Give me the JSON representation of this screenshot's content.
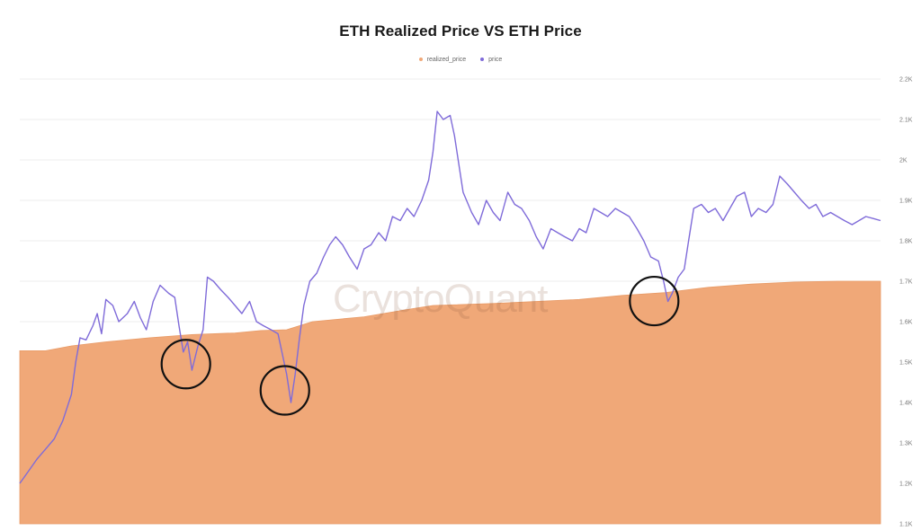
{
  "chart_data": {
    "type": "area",
    "title": "ETH Realized Price VS ETH Price",
    "watermark": "CryptoQuant",
    "legend_position": "top-center",
    "grid": "horizontal",
    "y_axis_position": "right",
    "ylim": [
      1100,
      2200
    ],
    "y_ticks": [
      {
        "value": 1100,
        "label": "1.1K"
      },
      {
        "value": 1200,
        "label": "1.2K"
      },
      {
        "value": 1300,
        "label": "1.3K"
      },
      {
        "value": 1400,
        "label": "1.4K"
      },
      {
        "value": 1500,
        "label": "1.5K"
      },
      {
        "value": 1600,
        "label": "1.6K"
      },
      {
        "value": 1700,
        "label": "1.7K"
      },
      {
        "value": 1800,
        "label": "1.8K"
      },
      {
        "value": 1900,
        "label": "1.9K"
      },
      {
        "value": 2000,
        "label": "2K"
      },
      {
        "value": 2100,
        "label": "2.1K"
      },
      {
        "value": 2200,
        "label": "2.2K"
      }
    ],
    "x_range": [
      0,
      100
    ],
    "series": [
      {
        "name": "realized_price",
        "kind": "area",
        "color": "#f0a878",
        "points": [
          [
            0,
            1528
          ],
          [
            3,
            1528
          ],
          [
            6,
            1540
          ],
          [
            10,
            1550
          ],
          [
            15,
            1560
          ],
          [
            20,
            1568
          ],
          [
            25,
            1572
          ],
          [
            28,
            1578
          ],
          [
            31,
            1580
          ],
          [
            34,
            1600
          ],
          [
            40,
            1612
          ],
          [
            45,
            1630
          ],
          [
            48,
            1640
          ],
          [
            55,
            1645
          ],
          [
            60,
            1650
          ],
          [
            65,
            1655
          ],
          [
            70,
            1665
          ],
          [
            75,
            1672
          ],
          [
            80,
            1685
          ],
          [
            85,
            1693
          ],
          [
            90,
            1698
          ],
          [
            95,
            1700
          ],
          [
            100,
            1700
          ]
        ]
      },
      {
        "name": "price",
        "kind": "line",
        "color": "#7f6bd9",
        "points": [
          [
            0,
            1200
          ],
          [
            1,
            1230
          ],
          [
            2,
            1260
          ],
          [
            3,
            1285
          ],
          [
            4,
            1310
          ],
          [
            5,
            1355
          ],
          [
            6,
            1420
          ],
          [
            6.5,
            1500
          ],
          [
            7,
            1560
          ],
          [
            7.7,
            1555
          ],
          [
            8.5,
            1590
          ],
          [
            9,
            1620
          ],
          [
            9.5,
            1570
          ],
          [
            10,
            1655
          ],
          [
            10.8,
            1640
          ],
          [
            11.5,
            1600
          ],
          [
            12.5,
            1620
          ],
          [
            13.3,
            1650
          ],
          [
            14,
            1610
          ],
          [
            14.7,
            1580
          ],
          [
            15.5,
            1650
          ],
          [
            16.3,
            1690
          ],
          [
            17.3,
            1670
          ],
          [
            18,
            1660
          ],
          [
            18.5,
            1590
          ],
          [
            19,
            1525
          ],
          [
            19.5,
            1550
          ],
          [
            20,
            1480
          ],
          [
            20.7,
            1540
          ],
          [
            21.3,
            1580
          ],
          [
            21.8,
            1710
          ],
          [
            22.5,
            1700
          ],
          [
            23.3,
            1680
          ],
          [
            24.2,
            1660
          ],
          [
            25,
            1640
          ],
          [
            25.8,
            1620
          ],
          [
            26.7,
            1650
          ],
          [
            27.5,
            1600
          ],
          [
            28.3,
            1590
          ],
          [
            29.2,
            1580
          ],
          [
            30,
            1570
          ],
          [
            30.5,
            1520
          ],
          [
            31,
            1470
          ],
          [
            31.5,
            1400
          ],
          [
            32,
            1470
          ],
          [
            32.5,
            1560
          ],
          [
            33,
            1640
          ],
          [
            33.7,
            1700
          ],
          [
            34.5,
            1720
          ],
          [
            35.3,
            1760
          ],
          [
            36,
            1790
          ],
          [
            36.7,
            1810
          ],
          [
            37.5,
            1790
          ],
          [
            38.3,
            1760
          ],
          [
            39.2,
            1730
          ],
          [
            40,
            1780
          ],
          [
            40.8,
            1790
          ],
          [
            41.7,
            1820
          ],
          [
            42.5,
            1800
          ],
          [
            43.3,
            1860
          ],
          [
            44.2,
            1850
          ],
          [
            45,
            1880
          ],
          [
            45.8,
            1860
          ],
          [
            46.7,
            1900
          ],
          [
            47.5,
            1950
          ],
          [
            48,
            2020
          ],
          [
            48.5,
            2120
          ],
          [
            49.2,
            2100
          ],
          [
            50,
            2110
          ],
          [
            50.5,
            2060
          ],
          [
            51,
            1990
          ],
          [
            51.5,
            1920
          ],
          [
            52.5,
            1870
          ],
          [
            53.3,
            1840
          ],
          [
            54.2,
            1900
          ],
          [
            55,
            1870
          ],
          [
            55.8,
            1850
          ],
          [
            56.7,
            1920
          ],
          [
            57.5,
            1890
          ],
          [
            58.3,
            1880
          ],
          [
            59.2,
            1850
          ],
          [
            60,
            1810
          ],
          [
            60.8,
            1780
          ],
          [
            61.7,
            1830
          ],
          [
            62.5,
            1820
          ],
          [
            63.3,
            1810
          ],
          [
            64.2,
            1800
          ],
          [
            65,
            1830
          ],
          [
            65.8,
            1820
          ],
          [
            66.7,
            1880
          ],
          [
            67.5,
            1870
          ],
          [
            68.3,
            1860
          ],
          [
            69.2,
            1880
          ],
          [
            70,
            1870
          ],
          [
            70.8,
            1860
          ],
          [
            71.7,
            1830
          ],
          [
            72.5,
            1800
          ],
          [
            73.3,
            1760
          ],
          [
            74.2,
            1750
          ],
          [
            74.8,
            1700
          ],
          [
            75.3,
            1650
          ],
          [
            75.8,
            1670
          ],
          [
            76.5,
            1710
          ],
          [
            77.2,
            1730
          ],
          [
            77.7,
            1800
          ],
          [
            78.3,
            1880
          ],
          [
            79.2,
            1890
          ],
          [
            80,
            1870
          ],
          [
            80.8,
            1880
          ],
          [
            81.7,
            1850
          ],
          [
            82.5,
            1880
          ],
          [
            83.3,
            1910
          ],
          [
            84.2,
            1920
          ],
          [
            85,
            1860
          ],
          [
            85.8,
            1880
          ],
          [
            86.7,
            1870
          ],
          [
            87.5,
            1890
          ],
          [
            88.3,
            1960
          ],
          [
            89.2,
            1940
          ],
          [
            90,
            1920
          ],
          [
            90.8,
            1900
          ],
          [
            91.7,
            1880
          ],
          [
            92.5,
            1890
          ],
          [
            93.3,
            1860
          ],
          [
            94.2,
            1870
          ],
          [
            95,
            1860
          ],
          [
            95.8,
            1850
          ],
          [
            96.7,
            1840
          ],
          [
            97.5,
            1850
          ],
          [
            98.3,
            1860
          ],
          [
            99.2,
            1855
          ],
          [
            100,
            1850
          ]
        ]
      }
    ],
    "annotations": [
      {
        "shape": "circle",
        "x": 19.3,
        "y": 1495
      },
      {
        "shape": "circle",
        "x": 30.8,
        "y": 1430
      },
      {
        "shape": "circle",
        "x": 73.7,
        "y": 1651
      }
    ]
  }
}
